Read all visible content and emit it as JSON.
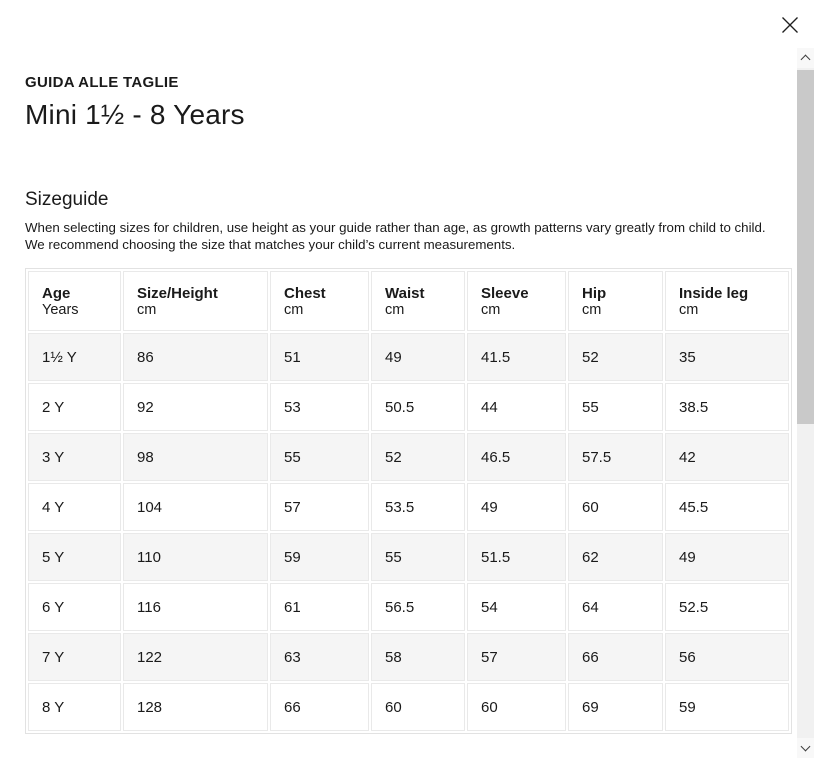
{
  "modal": {
    "eyebrow": "GUIDA ALLE TAGLIE",
    "title": "Mini 1½ - 8 Years"
  },
  "sizeguide": {
    "heading": "Sizeguide",
    "description": "When selecting sizes for children, use height as your guide rather than age, as growth patterns vary greatly from child to child. We recommend choosing the size that matches your child’s current measurements."
  },
  "table": {
    "columns": [
      {
        "label": "Age",
        "unit": "Years"
      },
      {
        "label": "Size/Height",
        "unit": "cm"
      },
      {
        "label": "Chest",
        "unit": "cm"
      },
      {
        "label": "Waist",
        "unit": "cm"
      },
      {
        "label": "Sleeve",
        "unit": "cm"
      },
      {
        "label": "Hip",
        "unit": "cm"
      },
      {
        "label": "Inside leg",
        "unit": "cm"
      }
    ],
    "rows": [
      [
        "1½ Y",
        "86",
        "51",
        "49",
        "41.5",
        "52",
        "35"
      ],
      [
        "2 Y",
        "92",
        "53",
        "50.5",
        "44",
        "55",
        "38.5"
      ],
      [
        "3 Y",
        "98",
        "55",
        "52",
        "46.5",
        "57.5",
        "42"
      ],
      [
        "4 Y",
        "104",
        "57",
        "53.5",
        "49",
        "60",
        "45.5"
      ],
      [
        "5 Y",
        "110",
        "59",
        "55",
        "51.5",
        "62",
        "49"
      ],
      [
        "6 Y",
        "116",
        "61",
        "56.5",
        "54",
        "64",
        "52.5"
      ],
      [
        "7 Y",
        "122",
        "63",
        "58",
        "57",
        "66",
        "56"
      ],
      [
        "8 Y",
        "128",
        "66",
        "60",
        "60",
        "69",
        "59"
      ]
    ]
  },
  "icons": {
    "close": "x-cross",
    "scroll_up": "chevron-up",
    "scroll_down": "chevron-down"
  },
  "colors": {
    "text": "#1a1a1a",
    "row_alt": "#f5f5f5",
    "cell_border": "#e9e9e9",
    "table_border": "#e2e2e2",
    "scrollbar_track": "#f1f1f1",
    "scrollbar_thumb": "#c9c9c9"
  }
}
